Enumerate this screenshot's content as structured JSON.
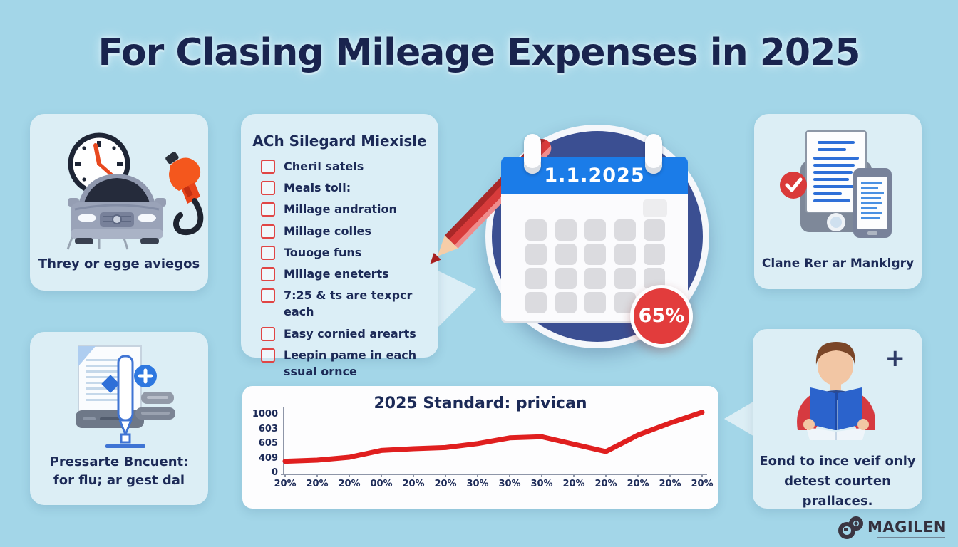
{
  "page": {
    "title": "For Clasing Mileage Expenses in 2025"
  },
  "cards": {
    "vehicle": {
      "caption": "Threy or egge aviegos"
    },
    "checklist": {
      "heading": "ACh Silegard Miexisle",
      "items": [
        "Cheril satels",
        "Meals toll:",
        "Millage andration",
        "Millage colles",
        "Touoge funs",
        "Millage eneterts",
        "7:25 & ts are texpcr each",
        "Easy cornied arearts",
        "Leepin pame in each ssual ornce"
      ]
    },
    "calendar": {
      "date": "1.1.2025",
      "badge": "65%",
      "grid_rows": 4,
      "grid_cols": 5
    },
    "devices": {
      "caption": "Clane Rer ar Manklgry"
    },
    "document": {
      "caption": [
        "Pressarte Bncuent:",
        "for flu; ar gest dal"
      ]
    },
    "reading": {
      "caption": [
        "Eond to ince veif only",
        "detest courten prallaces."
      ],
      "plus_glyph": "+"
    }
  },
  "chart_data": {
    "type": "line",
    "title": "2025 Standard: privican",
    "x": [
      "20%",
      "20%",
      "20%",
      "00%",
      "20%",
      "20%",
      "30%",
      "30%",
      "30%",
      "20%",
      "20%",
      "20%",
      "20%",
      "20%"
    ],
    "values": [
      230,
      250,
      300,
      420,
      450,
      470,
      540,
      640,
      660,
      530,
      400,
      690,
      900,
      1090
    ],
    "y_tick_labels": [
      "1000",
      "603",
      "605",
      "409",
      "0"
    ],
    "ylim": [
      0,
      1150
    ],
    "xlabel": "",
    "ylabel": "",
    "grid": false,
    "legend": false,
    "line_color": "#e01f1f"
  },
  "logo": {
    "name": "MAGILEN"
  },
  "colors": {
    "background": "#a3d6e8",
    "card": "#dceef5",
    "navy": "#1c2a57",
    "red": "#e03c3c",
    "calendar_circle": "#3b4f92",
    "calendar_header": "#1b7ce8",
    "badge_red": "#e23c3c",
    "chart_line": "#e01f1f"
  }
}
